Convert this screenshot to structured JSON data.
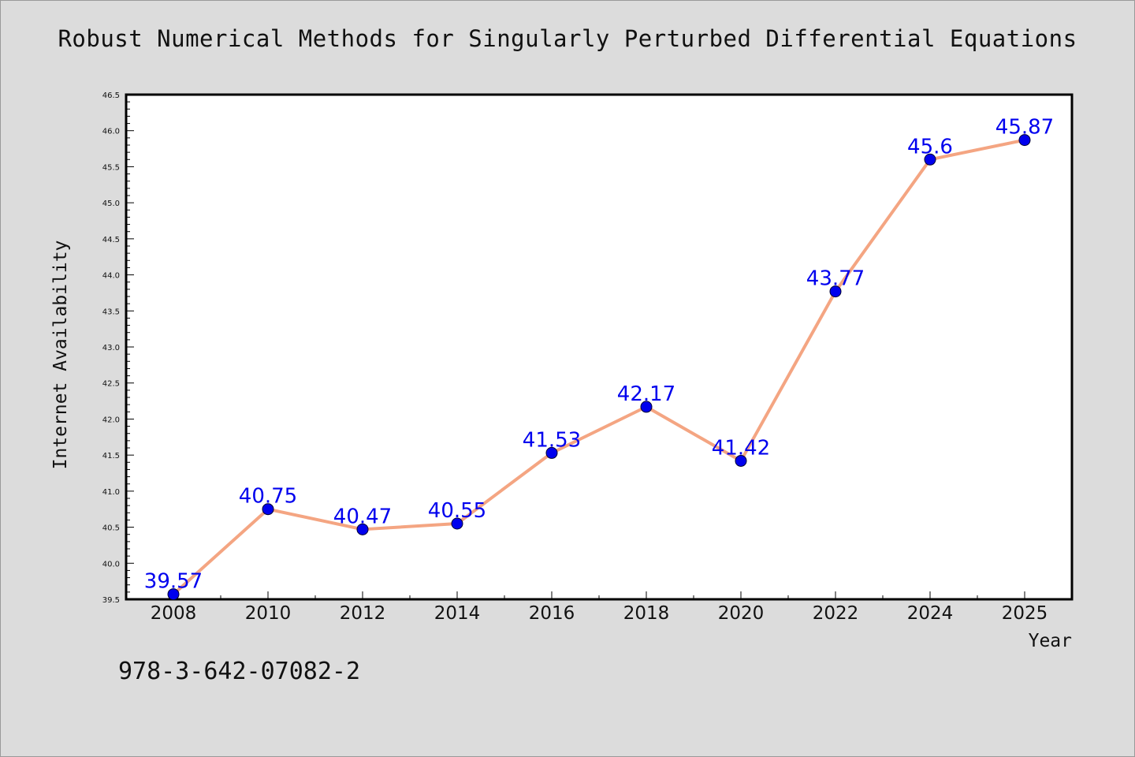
{
  "chart_data": {
    "type": "line",
    "title": "Robust Numerical Methods for Singularly Perturbed Differential Equations",
    "xlabel": "Year",
    "ylabel": "Internet Availability",
    "categories": [
      "2008",
      "2010",
      "2012",
      "2014",
      "2016",
      "2018",
      "2020",
      "2022",
      "2024",
      "2025"
    ],
    "series": [
      {
        "values": [
          39.57,
          40.75,
          40.47,
          40.55,
          41.53,
          42.17,
          41.42,
          43.77,
          45.6,
          45.87
        ],
        "labels": [
          "39.57",
          "40.75",
          "40.47",
          "40.55",
          "41.53",
          "42.17",
          "41.42",
          "43.77",
          "45.6",
          "45.87"
        ]
      }
    ],
    "ylim": [
      39.5,
      46.5
    ],
    "yticks": [
      "39.5",
      "40.0",
      "40.5",
      "41.0",
      "41.5",
      "42.0",
      "42.5",
      "43.0",
      "43.5",
      "44.0",
      "44.5",
      "45.0",
      "45.5",
      "46.0",
      "46.5"
    ],
    "grid": false,
    "line_color": "#f4a582",
    "marker_color": "#0000ee",
    "label_color": "#0000ee"
  },
  "footer": {
    "isbn": "978-3-642-07082-2"
  }
}
